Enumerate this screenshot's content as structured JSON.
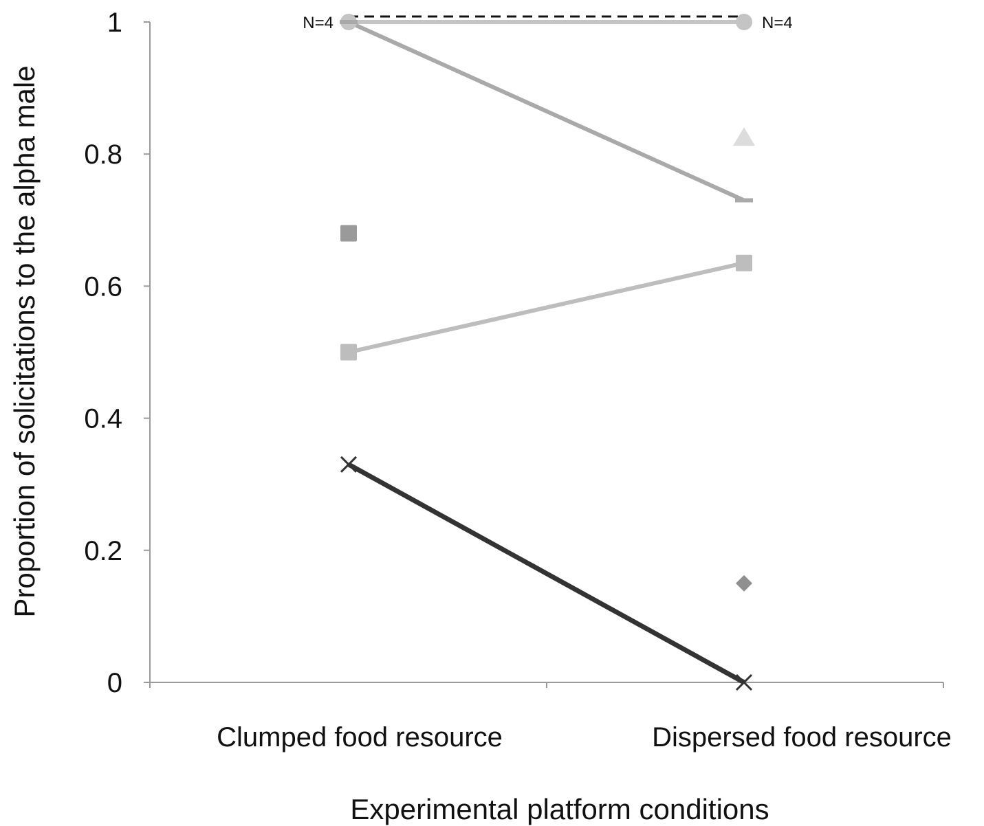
{
  "chart_data": {
    "type": "line",
    "title": "",
    "xlabel": "Experimental platform conditions",
    "ylabel": "Proportion of solicitations to the alpha male",
    "categories": [
      "Clumped food resource",
      "Dispersed food resource"
    ],
    "ylim": [
      0,
      1
    ],
    "yticks": [
      0,
      0.2,
      0.4,
      0.6,
      0.8,
      1
    ],
    "ytick_labels": [
      "0",
      "0.2",
      "0.4",
      "0.6",
      "0.8",
      "1"
    ],
    "grid": false,
    "legend": "none",
    "series": [
      {
        "values": [
          1,
          1
        ],
        "marker": "circle",
        "color": "#c4c4c4",
        "line": "solid"
      },
      {
        "values": [
          1,
          0.73
        ],
        "marker": "dash",
        "color": "#a9a9a9",
        "line": "solid"
      },
      {
        "values": [
          0.5,
          0.635
        ],
        "marker": "square",
        "color": "#bdbdbd",
        "line": "solid"
      },
      {
        "values": [
          0.33,
          0
        ],
        "marker": "x",
        "color": "#333333",
        "line": "solid"
      },
      {
        "values": [
          0.68,
          null
        ],
        "marker": "square",
        "color": "#9a9a9a",
        "line": "none"
      },
      {
        "values": [
          null,
          0.825
        ],
        "marker": "triangle",
        "color": "#dcdcdc",
        "line": "none"
      },
      {
        "values": [
          null,
          0.15
        ],
        "marker": "diamond",
        "color": "#8f8f8f",
        "line": "none"
      }
    ],
    "reference_line": {
      "value": 1,
      "style": "dashed",
      "color": "#111111"
    },
    "annotations": [
      {
        "text": "N=4",
        "category": 0,
        "y": 1
      },
      {
        "text": "N=4",
        "category": 1,
        "y": 1
      }
    ]
  }
}
